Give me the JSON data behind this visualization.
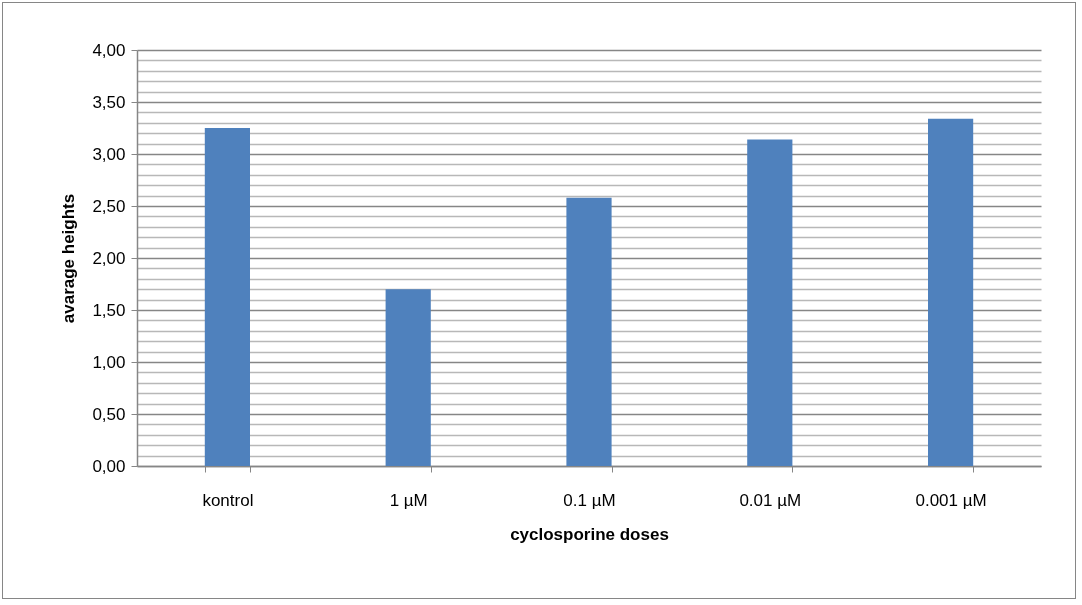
{
  "chart_data": {
    "type": "bar",
    "xlabel": "cyclosporine doses",
    "ylabel": "avarage heights",
    "categories": [
      "kontrol",
      "1 µM",
      "0.1 µM",
      "0.01 µM",
      "0.001 µM"
    ],
    "values": [
      3.25,
      1.7,
      2.58,
      3.14,
      3.34
    ],
    "color": "#4f81bd",
    "ylim": [
      0,
      4
    ],
    "yticks": [
      {
        "value": 0,
        "label": "0,00"
      },
      {
        "value": 0.1,
        "label": null
      },
      {
        "value": 0.2,
        "label": null
      },
      {
        "value": 0.3,
        "label": null
      },
      {
        "value": 0.4,
        "label": null
      },
      {
        "value": 0.5,
        "label": "0,50"
      },
      {
        "value": 0.6,
        "label": null
      },
      {
        "value": 0.7,
        "label": null
      },
      {
        "value": 0.8,
        "label": null
      },
      {
        "value": 0.9,
        "label": null
      },
      {
        "value": 1,
        "label": "1,00"
      },
      {
        "value": 1.1,
        "label": null
      },
      {
        "value": 1.2,
        "label": null
      },
      {
        "value": 1.3,
        "label": null
      },
      {
        "value": 1.4,
        "label": null
      },
      {
        "value": 1.5,
        "label": "1,50"
      },
      {
        "value": 1.6,
        "label": null
      },
      {
        "value": 1.7,
        "label": null
      },
      {
        "value": 1.8,
        "label": null
      },
      {
        "value": 1.9,
        "label": null
      },
      {
        "value": 2,
        "label": "2,00"
      },
      {
        "value": 2.1,
        "label": null
      },
      {
        "value": 2.2,
        "label": null
      },
      {
        "value": 2.3,
        "label": null
      },
      {
        "value": 2.4,
        "label": null
      },
      {
        "value": 2.5,
        "label": "2,50"
      },
      {
        "value": 2.6,
        "label": null
      },
      {
        "value": 2.7,
        "label": null
      },
      {
        "value": 2.8,
        "label": null
      },
      {
        "value": 2.9,
        "label": null
      },
      {
        "value": 3,
        "label": "3,00"
      },
      {
        "value": 3.1,
        "label": null
      },
      {
        "value": 3.2,
        "label": null
      },
      {
        "value": 3.3,
        "label": null
      },
      {
        "value": 3.4,
        "label": null
      },
      {
        "value": 3.5,
        "label": "3,50"
      },
      {
        "value": 3.6,
        "label": null
      },
      {
        "value": 3.7,
        "label": null
      },
      {
        "value": 3.8,
        "label": null
      },
      {
        "value": 3.9,
        "label": null
      },
      {
        "value": 4,
        "label": "4,00"
      }
    ],
    "grid": "y"
  }
}
